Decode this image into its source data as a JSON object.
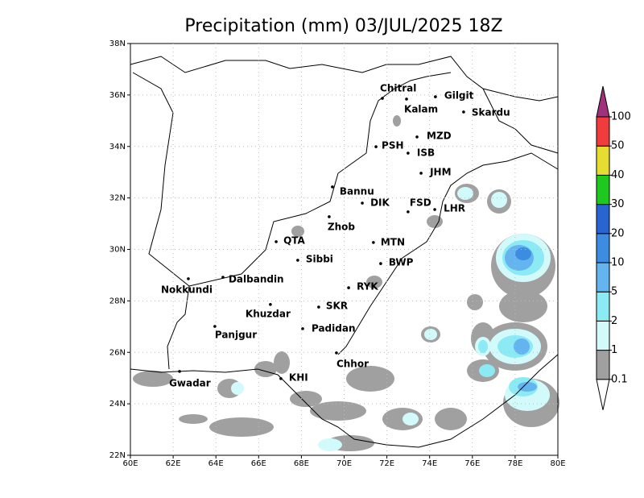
{
  "map": {
    "title": "Precipitation (mm) 03/JUL/2025 18Z",
    "xlim": [
      60,
      80
    ],
    "ylim": [
      22,
      38
    ],
    "xticks": [
      {
        "value": 60,
        "label": "60E"
      },
      {
        "value": 62,
        "label": "62E"
      },
      {
        "value": 64,
        "label": "64E"
      },
      {
        "value": 66,
        "label": "66E"
      },
      {
        "value": 68,
        "label": "68E"
      },
      {
        "value": 70,
        "label": "70E"
      },
      {
        "value": 72,
        "label": "72E"
      },
      {
        "value": 74,
        "label": "74E"
      },
      {
        "value": 76,
        "label": "76E"
      },
      {
        "value": 78,
        "label": "78E"
      },
      {
        "value": 80,
        "label": "80E"
      }
    ],
    "yticks": [
      {
        "value": 22,
        "label": "22N"
      },
      {
        "value": 24,
        "label": "24N"
      },
      {
        "value": 26,
        "label": "26N"
      },
      {
        "value": 28,
        "label": "28N"
      },
      {
        "value": 30,
        "label": "30N"
      },
      {
        "value": 32,
        "label": "32N"
      },
      {
        "value": 34,
        "label": "34N"
      },
      {
        "value": 36,
        "label": "36N"
      },
      {
        "value": 38,
        "label": "38N"
      }
    ],
    "grid": true,
    "cities": [
      {
        "name": "Chitral",
        "lon": 71.79,
        "lat": 35.87
      },
      {
        "name": "Kalam",
        "lon": 72.92,
        "lat": 35.84
      },
      {
        "name": "Gilgit",
        "lon": 74.27,
        "lat": 35.93
      },
      {
        "name": "Skardu",
        "lon": 75.59,
        "lat": 35.34
      },
      {
        "name": "MZD",
        "lon": 73.41,
        "lat": 34.37
      },
      {
        "name": "PSH",
        "lon": 71.49,
        "lat": 33.99
      },
      {
        "name": "ISB",
        "lon": 72.99,
        "lat": 33.74
      },
      {
        "name": "JHM",
        "lon": 73.6,
        "lat": 32.96
      },
      {
        "name": "Bannu",
        "lon": 69.45,
        "lat": 32.43
      },
      {
        "name": "DIK",
        "lon": 70.85,
        "lat": 31.8
      },
      {
        "name": "FSD",
        "lon": 72.99,
        "lat": 31.46
      },
      {
        "name": "LHR",
        "lon": 74.24,
        "lat": 31.55
      },
      {
        "name": "Zhob",
        "lon": 69.3,
        "lat": 31.27
      },
      {
        "name": "QTA",
        "lon": 66.82,
        "lat": 30.3
      },
      {
        "name": "MTN",
        "lon": 71.37,
        "lat": 30.27
      },
      {
        "name": "Sibbi",
        "lon": 67.83,
        "lat": 29.58
      },
      {
        "name": "BWP",
        "lon": 71.71,
        "lat": 29.45
      },
      {
        "name": "Dalbandin",
        "lon": 64.33,
        "lat": 28.92
      },
      {
        "name": "Nokkundi",
        "lon": 62.71,
        "lat": 28.86
      },
      {
        "name": "RYK",
        "lon": 70.21,
        "lat": 28.51
      },
      {
        "name": "Khuzdar",
        "lon": 66.55,
        "lat": 27.86
      },
      {
        "name": "SKR",
        "lon": 68.81,
        "lat": 27.76
      },
      {
        "name": "Panjgur",
        "lon": 63.95,
        "lat": 27.01
      },
      {
        "name": "Padidan",
        "lon": 68.06,
        "lat": 26.92
      },
      {
        "name": "Chhor",
        "lon": 69.64,
        "lat": 25.98
      },
      {
        "name": "KHI",
        "lon": 67.04,
        "lat": 24.98
      },
      {
        "name": "Gwadar",
        "lon": 62.3,
        "lat": 25.26
      }
    ],
    "colorbar": {
      "levels": [
        0.1,
        1,
        2,
        5,
        10,
        20,
        30,
        40,
        50,
        100
      ],
      "colors": [
        "#ffffff",
        "#a0a0a0",
        "#d2fafa",
        "#8ceaf5",
        "#64b4f0",
        "#3c8ce1",
        "#2864d2",
        "#1ec81e",
        "#e6dc32",
        "#f03c3c",
        "#a0327d"
      ]
    }
  }
}
